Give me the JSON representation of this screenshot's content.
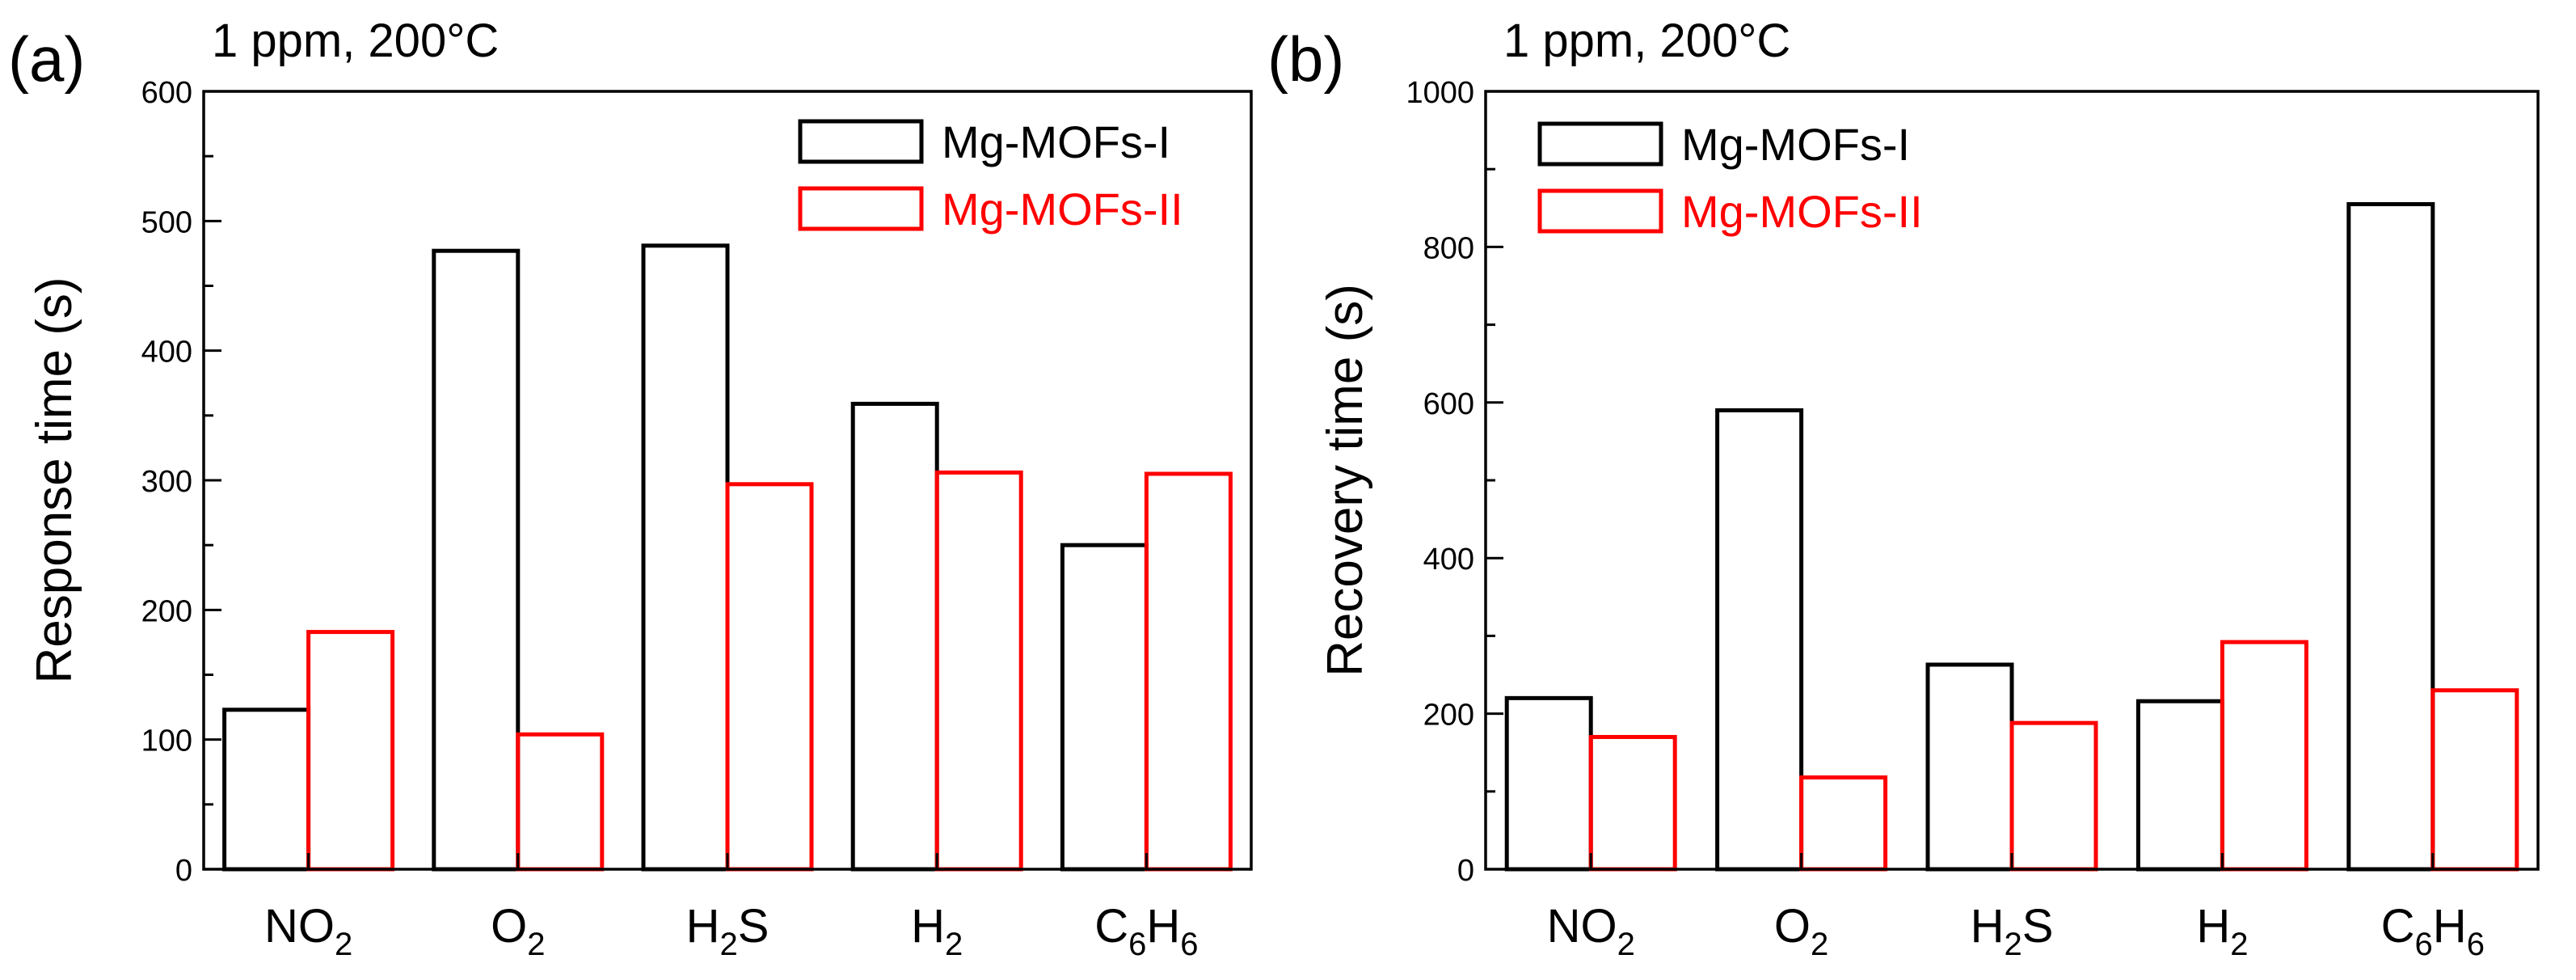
{
  "figure": {
    "background": "#ffffff"
  },
  "legend": {
    "series": [
      {
        "name": "Mg-MOFs-I",
        "color": "#000000"
      },
      {
        "name": "Mg-MOFs-II",
        "color": "#ff0000"
      }
    ]
  },
  "chart_data": [
    {
      "type": "bar",
      "panel_label": "(a)",
      "title": "1 ppm, 200°C",
      "ylabel": "Response time (s)",
      "xlabel": "",
      "ylim": [
        0,
        600
      ],
      "yticks": [
        "0",
        "100",
        "200",
        "300",
        "400",
        "500",
        "600"
      ],
      "categories": [
        {
          "base": "NO",
          "sub": "2",
          "rest": ""
        },
        {
          "base": "O",
          "sub": "2",
          "rest": ""
        },
        {
          "base": "H",
          "sub": "2",
          "rest": "S"
        },
        {
          "base": "H",
          "sub": "2",
          "rest": ""
        },
        {
          "base": "C",
          "sub": "6",
          "rest": "H",
          "sub2": "6"
        }
      ],
      "series": [
        {
          "name": "Mg-MOFs-I",
          "color": "#000000",
          "values": [
            123,
            477,
            481,
            359,
            250
          ]
        },
        {
          "name": "Mg-MOFs-II",
          "color": "#ff0000",
          "values": [
            183,
            104,
            297,
            306,
            305
          ]
        }
      ],
      "legend_position": "top-right",
      "grid": false
    },
    {
      "type": "bar",
      "panel_label": "(b)",
      "title": "1 ppm, 200°C",
      "ylabel": "Recovery time (s)",
      "xlabel": "",
      "ylim": [
        0,
        1000
      ],
      "yticks": [
        "0",
        "200",
        "400",
        "600",
        "800",
        "1000"
      ],
      "categories": [
        {
          "base": "NO",
          "sub": "2",
          "rest": ""
        },
        {
          "base": "O",
          "sub": "2",
          "rest": ""
        },
        {
          "base": "H",
          "sub": "2",
          "rest": "S"
        },
        {
          "base": "H",
          "sub": "2",
          "rest": ""
        },
        {
          "base": "C",
          "sub": "6",
          "rest": "H",
          "sub2": "6"
        }
      ],
      "series": [
        {
          "name": "Mg-MOFs-I",
          "color": "#000000",
          "values": [
            220,
            590,
            263,
            216,
            855
          ]
        },
        {
          "name": "Mg-MOFs-II",
          "color": "#ff0000",
          "values": [
            170,
            118,
            188,
            292,
            230
          ]
        }
      ],
      "legend_position": "top-left",
      "grid": false
    }
  ]
}
